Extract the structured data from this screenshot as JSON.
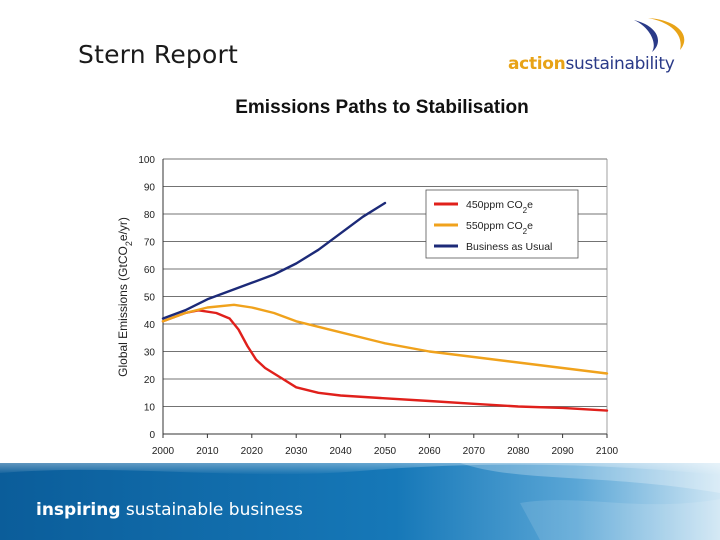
{
  "slide": {
    "title": "Stern Report"
  },
  "logo": {
    "text_bold": "action",
    "text_rest": "sustainability",
    "icon": "swoosh-icon",
    "colors": {
      "orange": "#e8a317",
      "navy": "#2a3a88"
    }
  },
  "footer": {
    "tagline_bold": "inspiring",
    "tagline_rest": " sustainable business"
  },
  "chart_data": {
    "type": "line",
    "title": "Emissions Paths to Stabilisation",
    "ylabel": "Global Emissions (GtCO2e/yr)",
    "xlabel": "",
    "xlim": [
      2000,
      2100
    ],
    "ylim": [
      0,
      100
    ],
    "xticks": [
      2000,
      2010,
      2020,
      2030,
      2040,
      2050,
      2060,
      2070,
      2080,
      2090,
      2100
    ],
    "yticks": [
      0,
      10,
      20,
      30,
      40,
      50,
      60,
      70,
      80,
      90,
      100
    ],
    "grid": "horizontal",
    "legend_position": "top-right",
    "series": [
      {
        "name": "450ppm CO2e",
        "color": "#e0201b",
        "points": [
          [
            2000,
            41
          ],
          [
            2005,
            44
          ],
          [
            2008,
            45
          ],
          [
            2012,
            44
          ],
          [
            2015,
            42
          ],
          [
            2017,
            38
          ],
          [
            2019,
            32
          ],
          [
            2021,
            27
          ],
          [
            2023,
            24
          ],
          [
            2027,
            20
          ],
          [
            2030,
            17
          ],
          [
            2035,
            15
          ],
          [
            2040,
            14
          ],
          [
            2050,
            13
          ],
          [
            2060,
            12
          ],
          [
            2070,
            11
          ],
          [
            2080,
            10
          ],
          [
            2090,
            9.5
          ],
          [
            2100,
            8.5
          ]
        ]
      },
      {
        "name": "550ppm CO2e",
        "color": "#f0a21c",
        "points": [
          [
            2000,
            41
          ],
          [
            2005,
            44
          ],
          [
            2010,
            46
          ],
          [
            2016,
            47
          ],
          [
            2020,
            46
          ],
          [
            2025,
            44
          ],
          [
            2030,
            41
          ],
          [
            2040,
            37
          ],
          [
            2050,
            33
          ],
          [
            2060,
            30
          ],
          [
            2070,
            28
          ],
          [
            2080,
            26
          ],
          [
            2090,
            24
          ],
          [
            2100,
            22
          ]
        ]
      },
      {
        "name": "Business as Usual",
        "color": "#1c2a78",
        "points": [
          [
            2000,
            42
          ],
          [
            2005,
            45
          ],
          [
            2010,
            49
          ],
          [
            2015,
            52
          ],
          [
            2020,
            55
          ],
          [
            2025,
            58
          ],
          [
            2030,
            62
          ],
          [
            2035,
            67
          ],
          [
            2040,
            73
          ],
          [
            2045,
            79
          ],
          [
            2050,
            84
          ]
        ]
      }
    ]
  }
}
